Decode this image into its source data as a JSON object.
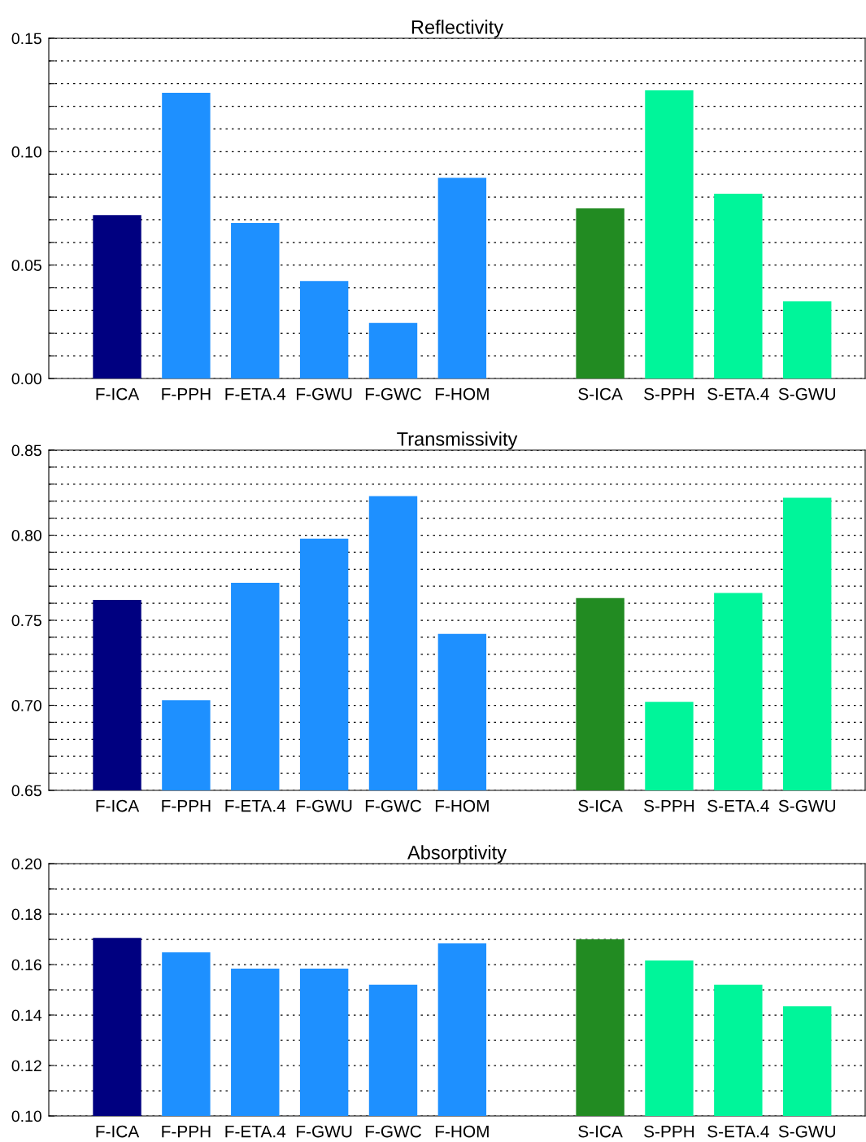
{
  "chart_data": [
    {
      "type": "bar",
      "title": "Reflectivity",
      "categories": [
        "F-ICA",
        "F-PPH",
        "F-ETA.4",
        "F-GWU",
        "F-GWC",
        "F-HOM",
        null,
        "S-ICA",
        "S-PPH",
        "S-ETA.4",
        "S-GWU"
      ],
      "values": [
        0.072,
        0.126,
        0.0685,
        0.043,
        0.0245,
        0.0885,
        null,
        0.075,
        0.127,
        0.0815,
        0.034
      ],
      "colors": [
        "#000080",
        "#1e90ff",
        "#1e90ff",
        "#1e90ff",
        "#1e90ff",
        "#1e90ff",
        "#1e90ff",
        "#228b22",
        "#00f59a",
        "#00f59a",
        "#00f59a"
      ],
      "ylim": [
        0,
        0.15
      ],
      "yticks": [
        {
          "value": 0,
          "label": "0.00"
        },
        {
          "value": 0.01,
          "label": null
        },
        {
          "value": 0.02,
          "label": null
        },
        {
          "value": 0.03,
          "label": null
        },
        {
          "value": 0.04,
          "label": null
        },
        {
          "value": 0.05,
          "label": "0.05"
        },
        {
          "value": 0.06,
          "label": null
        },
        {
          "value": 0.07,
          "label": null
        },
        {
          "value": 0.08,
          "label": null
        },
        {
          "value": 0.09,
          "label": null
        },
        {
          "value": 0.1,
          "label": "0.10"
        },
        {
          "value": 0.11,
          "label": null
        },
        {
          "value": 0.12,
          "label": null
        },
        {
          "value": 0.13,
          "label": null
        },
        {
          "value": 0.14,
          "label": null
        },
        {
          "value": 0.15,
          "label": "0.15"
        }
      ],
      "grid": "y",
      "legend": false
    },
    {
      "type": "bar",
      "title": "Transmissivity",
      "categories": [
        "F-ICA",
        "F-PPH",
        "F-ETA.4",
        "F-GWU",
        "F-GWC",
        "F-HOM",
        null,
        "S-ICA",
        "S-PPH",
        "S-ETA.4",
        "S-GWU"
      ],
      "values": [
        0.762,
        0.703,
        0.772,
        0.798,
        0.823,
        0.742,
        null,
        0.763,
        0.702,
        0.766,
        0.822
      ],
      "colors": [
        "#000080",
        "#1e90ff",
        "#1e90ff",
        "#1e90ff",
        "#1e90ff",
        "#1e90ff",
        "#1e90ff",
        "#228b22",
        "#00f59a",
        "#00f59a",
        "#00f59a"
      ],
      "ylim": [
        0.65,
        0.85
      ],
      "yticks": [
        {
          "value": 0.65,
          "label": "0.65"
        },
        {
          "value": 0.66,
          "label": null
        },
        {
          "value": 0.67,
          "label": null
        },
        {
          "value": 0.68,
          "label": null
        },
        {
          "value": 0.69,
          "label": null
        },
        {
          "value": 0.7,
          "label": "0.70"
        },
        {
          "value": 0.71,
          "label": null
        },
        {
          "value": 0.72,
          "label": null
        },
        {
          "value": 0.73,
          "label": null
        },
        {
          "value": 0.74,
          "label": null
        },
        {
          "value": 0.75,
          "label": "0.75"
        },
        {
          "value": 0.76,
          "label": null
        },
        {
          "value": 0.77,
          "label": null
        },
        {
          "value": 0.78,
          "label": null
        },
        {
          "value": 0.79,
          "label": null
        },
        {
          "value": 0.8,
          "label": "0.80"
        },
        {
          "value": 0.81,
          "label": null
        },
        {
          "value": 0.82,
          "label": null
        },
        {
          "value": 0.83,
          "label": null
        },
        {
          "value": 0.84,
          "label": null
        },
        {
          "value": 0.85,
          "label": "0.85"
        }
      ],
      "grid": "y",
      "legend": false
    },
    {
      "type": "bar",
      "title": "Absorptivity",
      "categories": [
        "F-ICA",
        "F-PPH",
        "F-ETA.4",
        "F-GWU",
        "F-GWC",
        "F-HOM",
        null,
        "S-ICA",
        "S-PPH",
        "S-ETA.4",
        "S-GWU"
      ],
      "values": [
        0.1706,
        0.1648,
        0.1584,
        0.1584,
        0.152,
        0.1684,
        null,
        0.17,
        0.1616,
        0.152,
        0.1435
      ],
      "colors": [
        "#000080",
        "#1e90ff",
        "#1e90ff",
        "#1e90ff",
        "#1e90ff",
        "#1e90ff",
        "#1e90ff",
        "#228b22",
        "#00f59a",
        "#00f59a",
        "#00f59a"
      ],
      "ylim": [
        0.1,
        0.2
      ],
      "yticks": [
        {
          "value": 0.1,
          "label": "0.10"
        },
        {
          "value": 0.11,
          "label": null
        },
        {
          "value": 0.12,
          "label": "0.12"
        },
        {
          "value": 0.13,
          "label": null
        },
        {
          "value": 0.14,
          "label": "0.14"
        },
        {
          "value": 0.15,
          "label": null
        },
        {
          "value": 0.16,
          "label": "0.16"
        },
        {
          "value": 0.17,
          "label": null
        },
        {
          "value": 0.18,
          "label": "0.18"
        },
        {
          "value": 0.19,
          "label": null
        },
        {
          "value": 0.2,
          "label": "0.20"
        }
      ],
      "grid": "y",
      "legend": false
    }
  ]
}
